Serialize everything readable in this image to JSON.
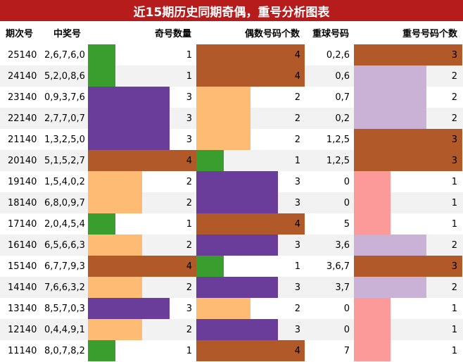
{
  "title": "近15期历史同期奇偶，重号分析图表",
  "headers": {
    "period": "期次号",
    "numbers": "中奖号",
    "odd_count": "奇号数量",
    "even_count": "偶数号码个数",
    "repeat_balls": "重球号码",
    "repeat_count": "重号号码个数"
  },
  "colors": {
    "one": "#3a9e2f",
    "two": "#fdbb74",
    "three": "#6a3d9a",
    "four": "#b15928",
    "repeat_one": "#fb9a99",
    "repeat_two": "#cab2d6",
    "repeat_three": "#b15928",
    "title_bg": "#b71c1c"
  },
  "chart_data": {
    "type": "table",
    "columns": [
      "期次号",
      "中奖号",
      "奇号数量",
      "偶数号码个数",
      "重球号码",
      "重号号码个数"
    ],
    "rows": [
      {
        "period": "25140",
        "numbers": "2,6,7,6,0",
        "odd": 1,
        "even": 4,
        "repeat_balls": "0,2,6",
        "repeat_count": 3
      },
      {
        "period": "24140",
        "numbers": "5,2,0,8,6",
        "odd": 1,
        "even": 4,
        "repeat_balls": "0,6",
        "repeat_count": 2
      },
      {
        "period": "23140",
        "numbers": "0,9,3,7,6",
        "odd": 3,
        "even": 2,
        "repeat_balls": "0,7",
        "repeat_count": 2
      },
      {
        "period": "22140",
        "numbers": "2,7,7,0,7",
        "odd": 3,
        "even": 2,
        "repeat_balls": "0,2",
        "repeat_count": 2
      },
      {
        "period": "21140",
        "numbers": "1,3,2,5,0",
        "odd": 3,
        "even": 2,
        "repeat_balls": "1,2,5",
        "repeat_count": 3
      },
      {
        "period": "20140",
        "numbers": "5,1,5,2,7",
        "odd": 4,
        "even": 1,
        "repeat_balls": "1,2,5",
        "repeat_count": 3
      },
      {
        "period": "19140",
        "numbers": "1,5,4,0,2",
        "odd": 2,
        "even": 3,
        "repeat_balls": "0",
        "repeat_count": 1
      },
      {
        "period": "18140",
        "numbers": "6,8,0,9,7",
        "odd": 2,
        "even": 3,
        "repeat_balls": "0",
        "repeat_count": 1
      },
      {
        "period": "17140",
        "numbers": "2,0,4,5,4",
        "odd": 1,
        "even": 4,
        "repeat_balls": "5",
        "repeat_count": 1
      },
      {
        "period": "16140",
        "numbers": "6,5,6,6,3",
        "odd": 2,
        "even": 3,
        "repeat_balls": "3,6",
        "repeat_count": 2
      },
      {
        "period": "15140",
        "numbers": "6,7,7,9,3",
        "odd": 4,
        "even": 1,
        "repeat_balls": "3,6,7",
        "repeat_count": 3
      },
      {
        "period": "14140",
        "numbers": "7,6,6,3,2",
        "odd": 2,
        "even": 3,
        "repeat_balls": "3,7",
        "repeat_count": 2
      },
      {
        "period": "13140",
        "numbers": "8,5,7,0,3",
        "odd": 3,
        "even": 2,
        "repeat_balls": "0",
        "repeat_count": 1
      },
      {
        "period": "12140",
        "numbers": "0,4,4,9,1",
        "odd": 2,
        "even": 3,
        "repeat_balls": "0",
        "repeat_count": 1
      },
      {
        "period": "11140",
        "numbers": "8,0,7,8,2",
        "odd": 1,
        "even": 4,
        "repeat_balls": "7",
        "repeat_count": 1
      }
    ]
  }
}
